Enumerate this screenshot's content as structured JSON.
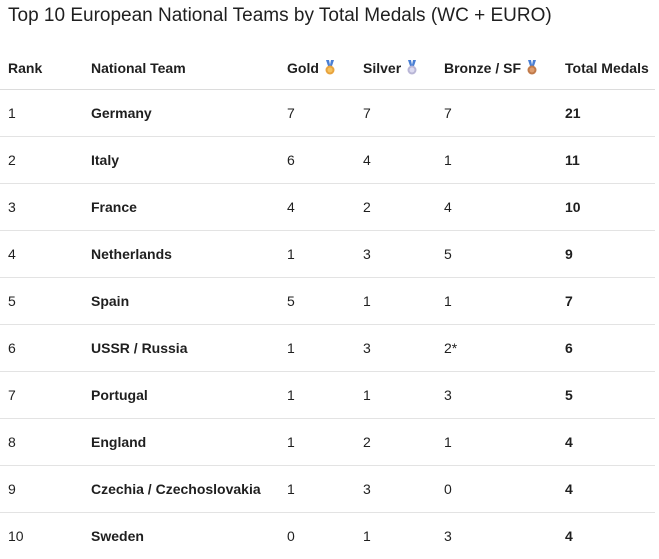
{
  "title": "Top 10 European National Teams by Total Medals (WC + EURO)",
  "table": {
    "headers": [
      "Rank",
      "National Team",
      "Gold",
      "Silver",
      "Bronze / SF",
      "Total Medals"
    ],
    "rows": [
      [
        1,
        "Germany",
        7,
        7,
        7,
        21
      ],
      [
        2,
        "Italy",
        6,
        4,
        1,
        11
      ],
      [
        3,
        "France",
        4,
        2,
        4,
        10
      ],
      [
        4,
        "Netherlands",
        1,
        3,
        5,
        9
      ],
      [
        5,
        "Spain",
        5,
        1,
        1,
        7
      ],
      [
        6,
        "USSR / Russia",
        1,
        3,
        "2*",
        6
      ],
      [
        7,
        "Portugal",
        1,
        1,
        3,
        5
      ],
      [
        8,
        "England",
        1,
        2,
        1,
        4
      ],
      [
        9,
        "Czechia / Czechoslovakia",
        1,
        3,
        0,
        4
      ],
      [
        10,
        "Sweden",
        0,
        1,
        3,
        4
      ]
    ]
  }
}
